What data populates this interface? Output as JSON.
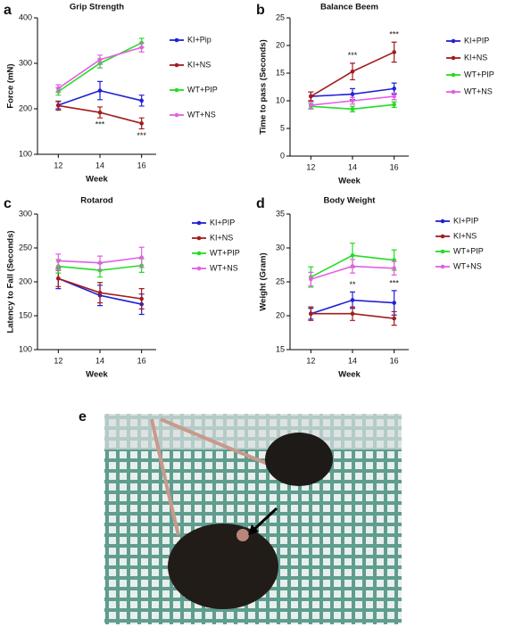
{
  "chart_data": [
    {
      "type": "line",
      "label": "a",
      "title": "Grip Strength",
      "x_label": "Week",
      "y_label": "Force (mN)",
      "x": [
        12,
        14,
        16
      ],
      "xlim": [
        11,
        16.7
      ],
      "xticks": [
        12,
        14,
        16
      ],
      "ylim": [
        100,
        400
      ],
      "yticks": [
        100,
        200,
        300,
        400
      ],
      "series": [
        {
          "name": "KI+Pip",
          "color": "#2121d4",
          "values": [
            208,
            240,
            218
          ],
          "errors": [
            8,
            20,
            12
          ]
        },
        {
          "name": "KI+NS",
          "color": "#a31c1c",
          "values": [
            207,
            192,
            168
          ],
          "errors": [
            10,
            12,
            12
          ]
        },
        {
          "name": "WT+PIP",
          "color": "#22dd22",
          "values": [
            238,
            300,
            345
          ],
          "errors": [
            8,
            10,
            10
          ]
        },
        {
          "name": "WT+NS",
          "color": "#e35fe3",
          "values": [
            245,
            308,
            335
          ],
          "errors": [
            8,
            10,
            10
          ]
        }
      ],
      "annotations": [
        {
          "text": "***",
          "x": 14,
          "series": "KI+NS"
        },
        {
          "text": "***",
          "x": 16,
          "series": "KI+NS"
        }
      ]
    },
    {
      "type": "line",
      "label": "b",
      "title": "Balance Beem",
      "x_label": "Week",
      "y_label": "Time to pass (Seconds)",
      "x": [
        12,
        14,
        16
      ],
      "xlim": [
        11,
        16.7
      ],
      "xticks": [
        12,
        14,
        16
      ],
      "ylim": [
        0,
        25
      ],
      "yticks": [
        0,
        5,
        10,
        15,
        20,
        25
      ],
      "series": [
        {
          "name": "KI+PIP",
          "color": "#2121d4",
          "values": [
            10.8,
            11.2,
            12.2
          ],
          "errors": [
            0.8,
            1,
            1
          ]
        },
        {
          "name": "KI+NS",
          "color": "#a31c1c",
          "values": [
            10.8,
            15.3,
            18.8
          ],
          "errors": [
            0.8,
            1.5,
            1.8
          ]
        },
        {
          "name": "WT+PIP",
          "color": "#22dd22",
          "values": [
            9.0,
            8.5,
            9.3
          ],
          "errors": [
            0.5,
            0.5,
            0.5
          ]
        },
        {
          "name": "WT+NS",
          "color": "#e35fe3",
          "values": [
            9.2,
            10.0,
            10.8
          ],
          "errors": [
            0.6,
            0.6,
            0.6
          ]
        }
      ],
      "annotations": [
        {
          "text": "***",
          "x": 14,
          "series": "KI+NS"
        },
        {
          "text": "***",
          "x": 16,
          "series": "KI+NS"
        }
      ]
    },
    {
      "type": "line",
      "label": "c",
      "title": "Rotarod",
      "x_label": "Week",
      "y_label": "Latency to Fall (Seconds)",
      "x": [
        12,
        14,
        16
      ],
      "xlim": [
        11,
        16.7
      ],
      "xticks": [
        12,
        14,
        16
      ],
      "ylim": [
        100,
        300
      ],
      "yticks": [
        100,
        150,
        200,
        250,
        300
      ],
      "series": [
        {
          "name": "KI+PIP",
          "color": "#2121d4",
          "values": [
            205,
            180,
            167
          ],
          "errors": [
            15,
            15,
            15
          ]
        },
        {
          "name": "KI+NS",
          "color": "#a31c1c",
          "values": [
            205,
            184,
            175
          ],
          "errors": [
            12,
            15,
            15
          ]
        },
        {
          "name": "WT+PIP",
          "color": "#22dd22",
          "values": [
            223,
            217,
            224
          ],
          "errors": [
            10,
            10,
            10
          ]
        },
        {
          "name": "WT+NS",
          "color": "#e35fe3",
          "values": [
            231,
            228,
            236
          ],
          "errors": [
            10,
            10,
            15
          ]
        }
      ],
      "annotations": []
    },
    {
      "type": "line",
      "label": "d",
      "title": "Body Weight",
      "x_label": "Week",
      "y_label": "Weight (Gram)",
      "x": [
        12,
        14,
        16
      ],
      "xlim": [
        11,
        16.7
      ],
      "xticks": [
        12,
        14,
        16
      ],
      "ylim": [
        15,
        35
      ],
      "yticks": [
        15,
        20,
        25,
        30,
        35
      ],
      "series": [
        {
          "name": "KI+PIP",
          "color": "#2121d4",
          "values": [
            20.3,
            22.3,
            21.9
          ],
          "errors": [
            0.8,
            1.2,
            1.8
          ]
        },
        {
          "name": "KI+NS",
          "color": "#a31c1c",
          "values": [
            20.3,
            20.3,
            19.6
          ],
          "errors": [
            1,
            1,
            1
          ]
        },
        {
          "name": "WT+PIP",
          "color": "#22dd22",
          "values": [
            25.7,
            28.9,
            28.2
          ],
          "errors": [
            1.5,
            1.8,
            1.5
          ]
        },
        {
          "name": "WT+NS",
          "color": "#e35fe3",
          "values": [
            25.4,
            27.3,
            27.0
          ],
          "errors": [
            1,
            1,
            1
          ]
        }
      ],
      "annotations": [
        {
          "text": "**",
          "x": 14,
          "series": "KI+PIP"
        },
        {
          "text": "***",
          "x": 16,
          "series": "KI+PIP"
        }
      ]
    }
  ],
  "photo": {
    "label": "e"
  }
}
